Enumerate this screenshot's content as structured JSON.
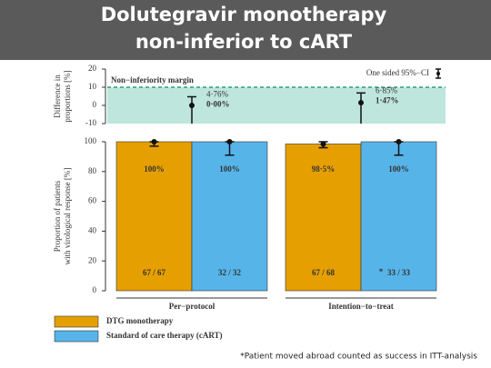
{
  "title": [
    "Dolutegravir monotherapy",
    "non-inferior to cART"
  ],
  "footnote": "*Patient moved abroad counted as success in ITT-analysis",
  "chart_data": [
    {
      "type": "errorpoint",
      "y_label": [
        "Difference in",
        "proportions [%]"
      ],
      "categories": [
        "Per−protocol",
        "Intention−to−treat"
      ],
      "values": [
        0,
        1.47
      ],
      "value_labels": [
        "0·00%",
        "1·47%"
      ],
      "ci_high": [
        4.76,
        6.85
      ],
      "ci_high_labels": [
        "4·76%",
        "6·85%"
      ],
      "margin": 10,
      "margin_label": "Non−inferiority margin",
      "margin_color": "#2a9d7a",
      "legend": "One sided 95%−CI",
      "legend_position": "upper right",
      "ylim": [
        -10,
        20
      ],
      "yticks": [
        -10,
        0,
        10,
        20
      ]
    },
    {
      "type": "bar",
      "y_label": [
        "Proportion of patients",
        "with virological response [%]"
      ],
      "categories": [
        "Per−protocol",
        "Intention−to−treat"
      ],
      "series": [
        {
          "name": "DTG monotherapy",
          "color": "#e69f00",
          "values": [
            100,
            98.5
          ],
          "value_labels": [
            "100%",
            "98·5%"
          ],
          "ci_low": [
            97,
            96
          ],
          "ci_high": [
            100,
            100
          ],
          "count_labels": [
            "67 / 67",
            "67 / 68"
          ]
        },
        {
          "name": "Standard of care therapy (cART)",
          "color": "#56b4e9",
          "values": [
            100,
            100
          ],
          "value_labels": [
            "100%",
            "100%"
          ],
          "ci_low": [
            91,
            91
          ],
          "ci_high": [
            100,
            100
          ],
          "count_labels": [
            "32 / 32",
            "33 / 33"
          ]
        }
      ],
      "annotation": "*",
      "legend_position": "bottom left",
      "ylim": [
        0,
        100
      ],
      "yticks": [
        0,
        20,
        40,
        60,
        80,
        100
      ]
    }
  ]
}
